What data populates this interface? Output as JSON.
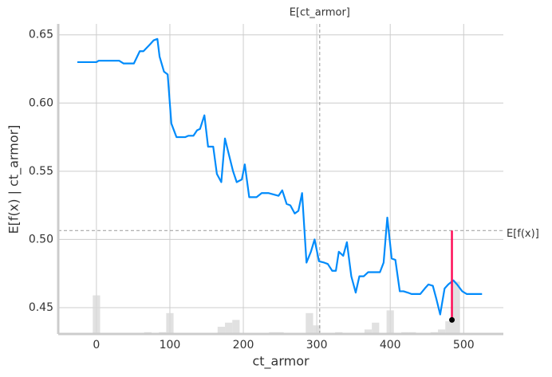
{
  "chart_data": {
    "type": "line",
    "x_label": "ct_armor",
    "y_label": "E[f(x) | ct_armor]",
    "x": [
      -26,
      0,
      3,
      31,
      37,
      51,
      59,
      64,
      73,
      78,
      83,
      86,
      92,
      97,
      102,
      109,
      121,
      125,
      132,
      137,
      141,
      147,
      152,
      159,
      164,
      170,
      175,
      180,
      186,
      191,
      198,
      202,
      208,
      218,
      225,
      234,
      241,
      248,
      253,
      259,
      264,
      270,
      275,
      280,
      286,
      292,
      297,
      303,
      310,
      315,
      321,
      326,
      330,
      336,
      341,
      347,
      353,
      358,
      364,
      370,
      375,
      380,
      386,
      391,
      396,
      402,
      407,
      413,
      418,
      424,
      429,
      441,
      447,
      452,
      458,
      463,
      468,
      474,
      479,
      486,
      491,
      498,
      504,
      525
    ],
    "values": [
      0.63,
      0.63,
      0.631,
      0.631,
      0.629,
      0.629,
      0.638,
      0.638,
      0.643,
      0.646,
      0.647,
      0.634,
      0.623,
      0.621,
      0.585,
      0.575,
      0.575,
      0.576,
      0.576,
      0.58,
      0.581,
      0.591,
      0.568,
      0.568,
      0.548,
      0.542,
      0.574,
      0.563,
      0.55,
      0.542,
      0.544,
      0.555,
      0.531,
      0.531,
      0.534,
      0.534,
      0.533,
      0.532,
      0.536,
      0.526,
      0.525,
      0.519,
      0.521,
      0.534,
      0.483,
      0.491,
      0.5,
      0.484,
      0.483,
      0.482,
      0.477,
      0.477,
      0.491,
      0.488,
      0.498,
      0.473,
      0.461,
      0.473,
      0.473,
      0.476,
      0.476,
      0.476,
      0.476,
      0.483,
      0.516,
      0.486,
      0.485,
      0.462,
      0.462,
      0.461,
      0.46,
      0.46,
      0.464,
      0.467,
      0.466,
      0.456,
      0.445,
      0.464,
      0.467,
      0.47,
      0.467,
      0.462,
      0.46,
      0.46
    ],
    "color": "#008bfb",
    "histogram": {
      "bins": [
        -5,
        5,
        15,
        25,
        35,
        45,
        55,
        65,
        75,
        85,
        95,
        105,
        115,
        125,
        135,
        145,
        155,
        165,
        175,
        185,
        195,
        205,
        215,
        225,
        235,
        245,
        255,
        265,
        275,
        285,
        295,
        305,
        315,
        325,
        335,
        345,
        355,
        365,
        375,
        385,
        395,
        405,
        415,
        425,
        435,
        445,
        455,
        465,
        475,
        485,
        495,
        505
      ],
      "values": [
        0.459,
        null,
        null,
        null,
        null,
        null,
        null,
        0.432,
        null,
        0.432,
        0.446,
        null,
        null,
        null,
        null,
        null,
        null,
        0.436,
        0.439,
        0.441,
        null,
        null,
        null,
        null,
        0.432,
        0.432,
        null,
        null,
        null,
        0.446,
        0.437,
        null,
        null,
        0.432,
        null,
        null,
        null,
        0.434,
        0.439,
        null,
        0.448,
        null,
        0.432,
        0.432,
        null,
        null,
        0.432,
        0.434,
        0.44,
        0.469,
        null
      ],
      "color": "#d9d9d9"
    },
    "expected_x": {
      "label": "E[ct_armor]",
      "value": 304
    },
    "expected_y": {
      "label": "E[f(x)]",
      "value": 0.5065
    },
    "highlight": {
      "x": 484,
      "y": 0.441,
      "y_to": 0.5065,
      "color": "#ff0d57"
    },
    "xlim": [
      -52,
      554
    ],
    "ylim": [
      0.4307,
      0.658
    ],
    "xticks": [
      0,
      100,
      200,
      300,
      400,
      500
    ],
    "yticks": [
      0.45,
      {
        "value": 0.5,
        "label": "0.50"
      },
      0.55,
      {
        "value": 0.6,
        "label": "0.60"
      },
      0.65
    ],
    "grid": true
  }
}
